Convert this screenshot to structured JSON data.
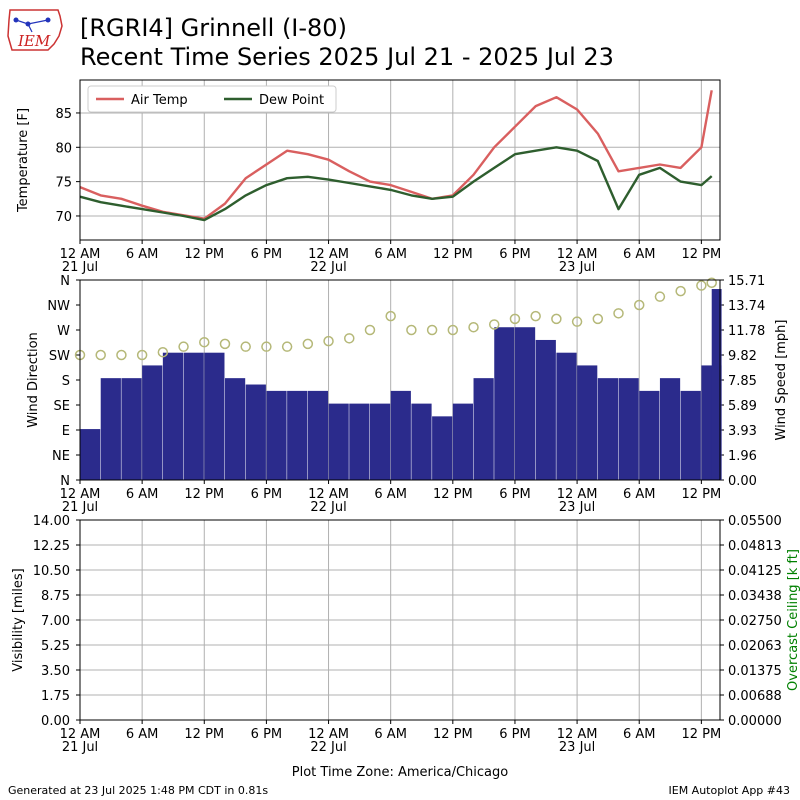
{
  "logo_text": "IEM",
  "header": {
    "title_line1": "[RGRI4] Grinnell (I-80)",
    "title_line2": "Recent Time Series 2025 Jul 21 - 2025 Jul 23"
  },
  "footer": {
    "generated": "Generated at 23 Jul 2025 1:48 PM CDT in 0.81s",
    "app": "IEM Autoplot App #43"
  },
  "colors": {
    "air_temp": "#d95f5f",
    "dew_point": "#2e5e2e",
    "wind_bar": "#2b2b8c",
    "wind_gust_bar": "#8c8cff",
    "wind_direction": "#b5b878",
    "ceiling_label": "#008000",
    "grid": "#b0b0b0"
  },
  "chart_data": [
    {
      "type": "line",
      "ylabel": "Temperature [F]",
      "ylim": [
        66.5,
        89.8
      ],
      "yticks": [
        70,
        75,
        80,
        85
      ],
      "legend_position": "top-left",
      "grid": true,
      "xlabel": "",
      "x_tick_labels": [
        "12 AM",
        "6 AM",
        "12 PM",
        "6 PM",
        "12 AM",
        "6 AM",
        "12 PM",
        "6 PM",
        "12 AM",
        "6 AM",
        "12 PM"
      ],
      "x_date_labels": [
        "21 Jul",
        "22 Jul",
        "23 Jul"
      ],
      "x_hours": [
        0,
        2,
        4,
        6,
        8,
        10,
        12,
        14,
        16,
        18,
        20,
        22,
        24,
        26,
        28,
        30,
        32,
        34,
        36,
        38,
        40,
        42,
        44,
        46,
        48,
        50,
        52,
        54,
        56,
        58,
        60,
        61
      ],
      "series": [
        {
          "name": "Air Temp",
          "values": [
            74.2,
            73.0,
            72.5,
            71.5,
            70.6,
            70.1,
            69.6,
            71.8,
            75.5,
            77.5,
            79.5,
            79.0,
            78.2,
            76.5,
            75.0,
            74.5,
            73.5,
            72.5,
            73.0,
            76.0,
            80.0,
            83.0,
            86.0,
            87.3,
            85.5,
            82.0,
            76.5,
            77.0,
            77.5,
            77.0,
            80.0,
            88.3
          ]
        },
        {
          "name": "Dew Point",
          "values": [
            72.8,
            72.0,
            71.5,
            71.0,
            70.5,
            70.0,
            69.4,
            71.0,
            73.0,
            74.5,
            75.5,
            75.7,
            75.3,
            74.8,
            74.3,
            73.8,
            73.0,
            72.5,
            72.8,
            75.0,
            77.0,
            79.0,
            79.5,
            80.0,
            79.5,
            78.0,
            71.0,
            76.0,
            77.0,
            75.0,
            74.5,
            75.8
          ]
        }
      ]
    },
    {
      "type": "bar",
      "ylabel": "Wind Direction",
      "y2label": "Wind Speed [mph]",
      "dir_labels": [
        "N",
        "NE",
        "E",
        "SE",
        "S",
        "SW",
        "W",
        "NW",
        "N"
      ],
      "y2_ticks": [
        "0.00",
        "1.96",
        "3.93",
        "5.89",
        "7.85",
        "9.82",
        "11.78",
        "13.74",
        "15.71"
      ],
      "ylim": [
        0,
        15.71
      ],
      "grid": true,
      "x_tick_labels": [
        "12 AM",
        "6 AM",
        "12 PM",
        "6 PM",
        "12 AM",
        "6 AM",
        "12 PM",
        "6 PM",
        "12 AM",
        "6 AM",
        "12 PM"
      ],
      "x_date_labels": [
        "21 Jul",
        "22 Jul",
        "23 Jul"
      ],
      "x_hours": [
        0,
        2,
        4,
        6,
        8,
        10,
        12,
        14,
        16,
        18,
        20,
        22,
        24,
        26,
        28,
        30,
        32,
        34,
        36,
        38,
        40,
        42,
        44,
        46,
        48,
        50,
        52,
        54,
        56,
        58,
        60,
        61
      ],
      "series": [
        {
          "name": "Wind Speed",
          "values": [
            4.0,
            8.0,
            8.0,
            9.0,
            10.0,
            10.0,
            10.0,
            8.0,
            7.5,
            7.0,
            7.0,
            7.0,
            6.0,
            6.0,
            6.0,
            7.0,
            6.0,
            5.0,
            6.0,
            8.0,
            12.0,
            12.0,
            11.0,
            10.0,
            9.0,
            8.0,
            8.0,
            7.0,
            8.0,
            7.0,
            9.0,
            15.0
          ]
        },
        {
          "name": "Wind Direction",
          "values": [
            225,
            225,
            225,
            225,
            230,
            240,
            248,
            245,
            240,
            240,
            240,
            245,
            250,
            255,
            270,
            295,
            270,
            270,
            270,
            275,
            280,
            290,
            295,
            290,
            285,
            290,
            300,
            315,
            330,
            340,
            350,
            355
          ]
        }
      ]
    },
    {
      "type": "line",
      "ylabel": "Visibility [miles]",
      "y2label": "Overcast Ceiling [k ft]",
      "ylim": [
        0,
        14
      ],
      "yticks": [
        "0.00",
        "1.75",
        "3.50",
        "5.25",
        "7.00",
        "8.75",
        "10.50",
        "12.25",
        "14.00"
      ],
      "y2lim": [
        0,
        0.055
      ],
      "y2_ticks": [
        "0.00000",
        "0.00688",
        "0.01375",
        "0.02063",
        "0.02750",
        "0.03438",
        "0.04125",
        "0.04813",
        "0.05500"
      ],
      "grid": true,
      "xlabel": "Plot Time Zone: America/Chicago",
      "x_tick_labels": [
        "12 AM",
        "6 AM",
        "12 PM",
        "6 PM",
        "12 AM",
        "6 AM",
        "12 PM",
        "6 PM",
        "12 AM",
        "6 AM",
        "12 PM"
      ],
      "x_date_labels": [
        "21 Jul",
        "22 Jul",
        "23 Jul"
      ],
      "series": []
    }
  ]
}
